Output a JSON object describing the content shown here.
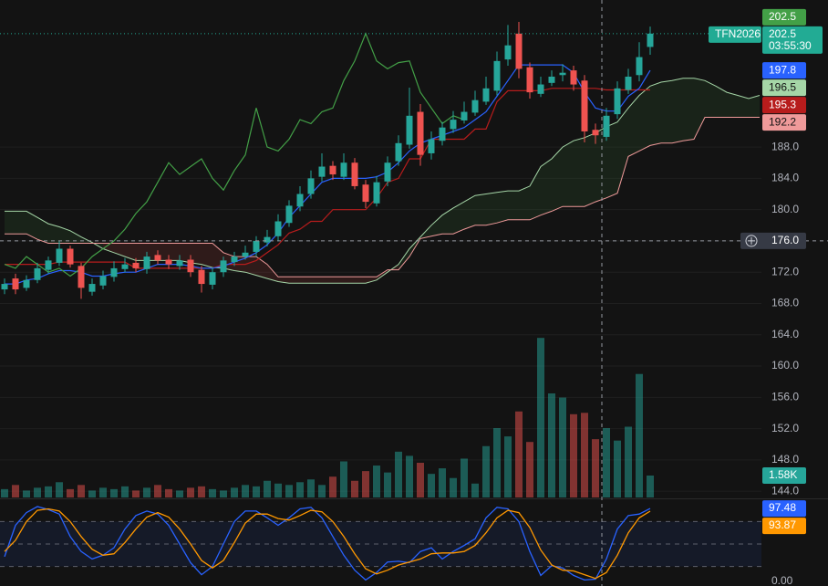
{
  "chart_data": [
    {
      "type": "candlestick",
      "symbol": "TFN2026",
      "countdown": "03:55:30",
      "up_color": "#26a69a",
      "down_color": "#ef5350",
      "open": [
        169.8,
        171.2,
        170,
        171,
        172.3,
        173.2,
        175,
        172.8,
        169.5,
        170.3,
        171.4,
        172.4,
        173.2,
        172.4,
        174.2,
        173.6,
        172.8,
        173.6,
        172.3,
        170.4,
        172,
        173.3,
        174,
        174.6,
        175.8,
        176.6,
        178.3,
        180.4,
        182,
        184.2,
        185.6,
        184.2,
        186,
        183.2,
        180.8,
        183.6,
        186.2,
        188.3,
        192.5,
        187.2,
        188.8,
        190.3,
        191.4,
        192.4,
        193.8,
        195.2,
        199.2,
        202.5,
        198.2,
        194.8,
        196.2,
        197.2,
        197.8,
        196.5,
        190.2,
        189.3,
        192.2,
        195.3,
        197.2,
        200.8
      ],
      "high": [
        171.2,
        171.8,
        171.6,
        173.2,
        174,
        176,
        175.4,
        173.2,
        171.2,
        172.2,
        173.4,
        173.8,
        173.8,
        174.6,
        174.8,
        174.2,
        174.2,
        174.2,
        172.8,
        172.6,
        174,
        174.6,
        175.4,
        176.6,
        177.4,
        179.4,
        181.2,
        183,
        185,
        187.2,
        186.2,
        187.2,
        186.6,
        183.8,
        184.3,
        186.8,
        189.5,
        195.6,
        193.5,
        190,
        191.2,
        192.6,
        193.8,
        195.2,
        197,
        200.2,
        203.6,
        204,
        198.8,
        197,
        197.8,
        198.6,
        198.4,
        197.2,
        191,
        193,
        196.4,
        198,
        201.4,
        203.4
      ],
      "low": [
        169.2,
        169.2,
        169.6,
        170.6,
        171.8,
        172.8,
        172.6,
        168.6,
        169,
        169.8,
        170.8,
        172,
        172,
        171.8,
        173,
        172.4,
        172.3,
        171.4,
        169.4,
        169.8,
        171.4,
        172.8,
        173.6,
        174,
        175.3,
        176,
        177.8,
        179.8,
        181.4,
        183.6,
        183.8,
        183.8,
        182.6,
        180.2,
        180.4,
        183,
        185.6,
        187.8,
        185.6,
        186.4,
        188.2,
        189.8,
        191,
        192,
        193.4,
        194.6,
        198.4,
        196.8,
        194.2,
        194.4,
        195.8,
        196.4,
        195.2,
        188.6,
        188.4,
        188.8,
        191.6,
        194.8,
        196.4,
        199.8
      ],
      "close": [
        170.5,
        169.8,
        171,
        172.5,
        173.5,
        175,
        173,
        170,
        170.5,
        171.5,
        172.5,
        173,
        172.5,
        174,
        173.5,
        173,
        173.5,
        172,
        170.5,
        172,
        173.5,
        174,
        174.5,
        176,
        176.5,
        178.5,
        180.5,
        182,
        184,
        185.5,
        184.5,
        186,
        183,
        181,
        183.5,
        186,
        188.5,
        192,
        187,
        189,
        190.5,
        191.5,
        192.5,
        194,
        195.5,
        199,
        201,
        198,
        195,
        196,
        197,
        197.5,
        196,
        190,
        189.5,
        192,
        195.5,
        197,
        199.5,
        202.5
      ],
      "lines": [
        {
          "color": "#b71c1c",
          "values": [
            173,
            173,
            173,
            173,
            173,
            173.3,
            173.3,
            173.3,
            173.3,
            173.3,
            173.3,
            173.3,
            172.5,
            172.5,
            172.5,
            172.5,
            172.5,
            172.5,
            172.5,
            172.5,
            173,
            173,
            173,
            173.5,
            174.5,
            175.5,
            177,
            177.5,
            178.5,
            178.5,
            180,
            180,
            180,
            180,
            181.5,
            183.5,
            184,
            186.5,
            186.5,
            189,
            189,
            189,
            189,
            190.3,
            190.3,
            193.8,
            195.2,
            195.2,
            195.2,
            195.2,
            195.5,
            195.5,
            195.5,
            195.5,
            195.5,
            195.3,
            195.3,
            195.3,
            195.3,
            195.3
          ]
        },
        {
          "color": "#2962ff",
          "values": [
            170.5,
            170.5,
            171,
            171.2,
            171.8,
            172.2,
            172.2,
            172,
            171.5,
            171.5,
            171.8,
            172,
            172,
            172.5,
            173,
            173,
            173,
            172.8,
            172.5,
            172.5,
            172.8,
            173.3,
            173.8,
            174.5,
            175.5,
            177,
            179,
            180.5,
            182,
            183.5,
            184,
            184,
            184,
            184,
            184.2,
            184.8,
            186,
            187.5,
            188.5,
            189,
            189.5,
            190,
            190.5,
            191.5,
            192.5,
            194.5,
            196.5,
            198.5,
            198.5,
            198.5,
            198.5,
            198.5,
            197.5,
            195,
            193,
            192.6,
            192.6,
            194.5,
            195.5,
            197.8
          ]
        },
        {
          "color": "#43a047",
          "values": [
            173,
            172.5,
            174,
            173,
            172,
            172.5,
            171.5,
            172.5,
            174,
            175,
            176,
            177.5,
            179.5,
            181,
            183.5,
            186,
            184.5,
            185.5,
            186.5,
            184,
            182.5,
            185,
            187,
            193,
            188,
            187.5,
            189,
            191.5,
            191,
            192.5,
            193,
            196.5,
            199,
            202.5,
            199,
            198,
            198.8,
            199,
            195,
            193,
            191,
            192,
            191.5,
            null,
            null,
            null,
            null,
            null,
            null,
            null,
            null,
            null,
            null,
            null,
            null,
            null,
            null,
            null,
            null,
            null
          ]
        }
      ],
      "cloud": {
        "span_a": {
          "color": "#a5d6a7",
          "values": [
            179.8,
            179.8,
            179.8,
            179,
            178.2,
            177.8,
            177.3,
            176.5,
            175.8,
            175,
            174.5,
            174,
            173.5,
            173.5,
            173.5,
            173.5,
            173.5,
            173.2,
            173,
            172.6,
            172.5,
            172.2,
            172,
            171.6,
            171.2,
            170.8,
            170.6,
            170.6,
            170.6,
            170.6,
            170.6,
            170.6,
            170.6,
            170.6,
            171,
            172,
            173,
            175,
            176.5,
            178,
            179.3,
            180.2,
            181,
            181.8,
            182,
            182.2,
            182.4,
            182.4,
            183,
            185.5,
            186.5,
            188,
            188.8,
            189.2,
            189.8,
            190.6,
            191.2,
            193,
            194.6,
            195.8,
            196.3,
            196.5,
            196.8,
            196.8,
            196.5,
            195.8,
            195,
            194.6,
            194.2,
            194.6
          ]
        },
        "span_b": {
          "color": "#ef9a9a",
          "values": [
            176.9,
            176.9,
            176.9,
            176.2,
            175.7,
            175.7,
            175.7,
            175.7,
            175.7,
            175.7,
            175.7,
            175.7,
            175.7,
            175.7,
            175.7,
            175.7,
            175.7,
            175.7,
            175.7,
            175.7,
            174.5,
            174,
            174,
            174,
            173,
            171.4,
            171.4,
            171.4,
            171.4,
            171.4,
            171.4,
            171.4,
            171.4,
            171.4,
            171.4,
            172.3,
            172.3,
            174,
            176.3,
            176.6,
            176.9,
            176.9,
            177.5,
            178,
            178,
            178.3,
            178.7,
            178.7,
            178.7,
            179.3,
            179.8,
            180.4,
            180.4,
            180.4,
            181,
            181.5,
            182.1,
            186.8,
            187.5,
            188.2,
            188.5,
            188.5,
            188.8,
            189,
            191.8,
            191.8,
            191.8,
            191.8,
            191.8,
            191.8
          ]
        },
        "up_fill": "rgba(76,175,80,0.10)",
        "down_fill": "rgba(239,83,80,0.13)"
      },
      "ylim": [
        143.2,
        206.8
      ],
      "yticks": [
        {
          "value": 144,
          "label": "144.0"
        },
        {
          "value": 148,
          "label": "148.0"
        },
        {
          "value": 152,
          "label": "152.0"
        },
        {
          "value": 156,
          "label": "156.0"
        },
        {
          "value": 160,
          "label": "160.0"
        },
        {
          "value": 164,
          "label": "164.0"
        },
        {
          "value": 168,
          "label": "168.0"
        },
        {
          "value": 172,
          "label": "172.0"
        },
        {
          "value": 176,
          "label": "176.0"
        },
        {
          "value": 180,
          "label": "180.0"
        },
        {
          "value": 184,
          "label": "184.0"
        },
        {
          "value": 188,
          "label": "188.0"
        }
      ],
      "grid": true,
      "high_tag": {
        "value": 202.5,
        "color": "#43a047",
        "text_color": "#ffffff"
      },
      "last_price": {
        "value": 202.5,
        "color": "#22ab94",
        "text_color": "#ffffff"
      },
      "price_tags": [
        {
          "value": 197.8,
          "color": "#2962ff",
          "text_color": "#ffffff"
        },
        {
          "value": 196.5,
          "color": "#a5d6a7",
          "text_color": "#131313"
        },
        {
          "value": 195.3,
          "color": "#b71c1c",
          "text_color": "#ffffff"
        },
        {
          "value": 192.2,
          "color": "#ef9a9a",
          "text_color": "#131313"
        }
      ],
      "crosshair": {
        "value": 176,
        "label": "176.0"
      }
    },
    {
      "type": "bar",
      "values": [
        600,
        900,
        500,
        700,
        800,
        1100,
        600,
        900,
        500,
        700,
        600,
        800,
        500,
        700,
        900,
        600,
        500,
        700,
        800,
        600,
        500,
        700,
        900,
        800,
        1200,
        1000,
        900,
        1100,
        1300,
        900,
        1500,
        2600,
        1200,
        1900,
        2300,
        1800,
        3300,
        3000,
        2500,
        1700,
        2100,
        1400,
        2800,
        1000,
        3700,
        5000,
        4400,
        6200,
        4000,
        11500,
        7500,
        7200,
        6000,
        6100,
        4200,
        5000,
        4100,
        5100,
        8900,
        1580
      ],
      "up_color": "rgba(38,166,154,0.5)",
      "down_color": "rgba(239,83,80,0.5)",
      "ylim": [
        0,
        20000
      ],
      "tag": {
        "value": 1580,
        "label": "1.58K",
        "color": "#26a69a"
      }
    },
    {
      "type": "line",
      "series": [
        {
          "color": "#2962ff",
          "values": [
            33,
            75,
            92,
            100,
            96,
            90,
            60,
            40,
            30,
            35,
            45,
            70,
            88,
            94,
            90,
            75,
            50,
            25,
            9,
            20,
            50,
            80,
            94,
            94,
            85,
            75,
            85,
            97,
            99,
            85,
            60,
            35,
            15,
            2,
            12,
            26,
            27,
            25,
            40,
            45,
            30,
            40,
            48,
            57,
            85,
            99,
            97,
            80,
            40,
            8,
            21,
            18,
            8,
            2,
            3,
            30,
            70,
            88,
            90,
            97.48
          ]
        },
        {
          "color": "#ff9800",
          "values": [
            40,
            55,
            80,
            95,
            97,
            94,
            80,
            60,
            43,
            35,
            37,
            52,
            70,
            86,
            92,
            86,
            70,
            50,
            28,
            18,
            28,
            52,
            78,
            90,
            90,
            84,
            82,
            88,
            95,
            93,
            80,
            60,
            37,
            17,
            10,
            15,
            22,
            26,
            30,
            37,
            38,
            38,
            40,
            48,
            65,
            85,
            95,
            92,
            72,
            42,
            22,
            15,
            14,
            9,
            4,
            12,
            35,
            65,
            85,
            93.87
          ]
        }
      ],
      "ylim": [
        0,
        100
      ],
      "levels": [
        20,
        50,
        80
      ],
      "band_color": "rgba(41,98,255,0.09)",
      "yticks": [
        {
          "value": 0,
          "label": "0.00"
        }
      ]
    }
  ]
}
